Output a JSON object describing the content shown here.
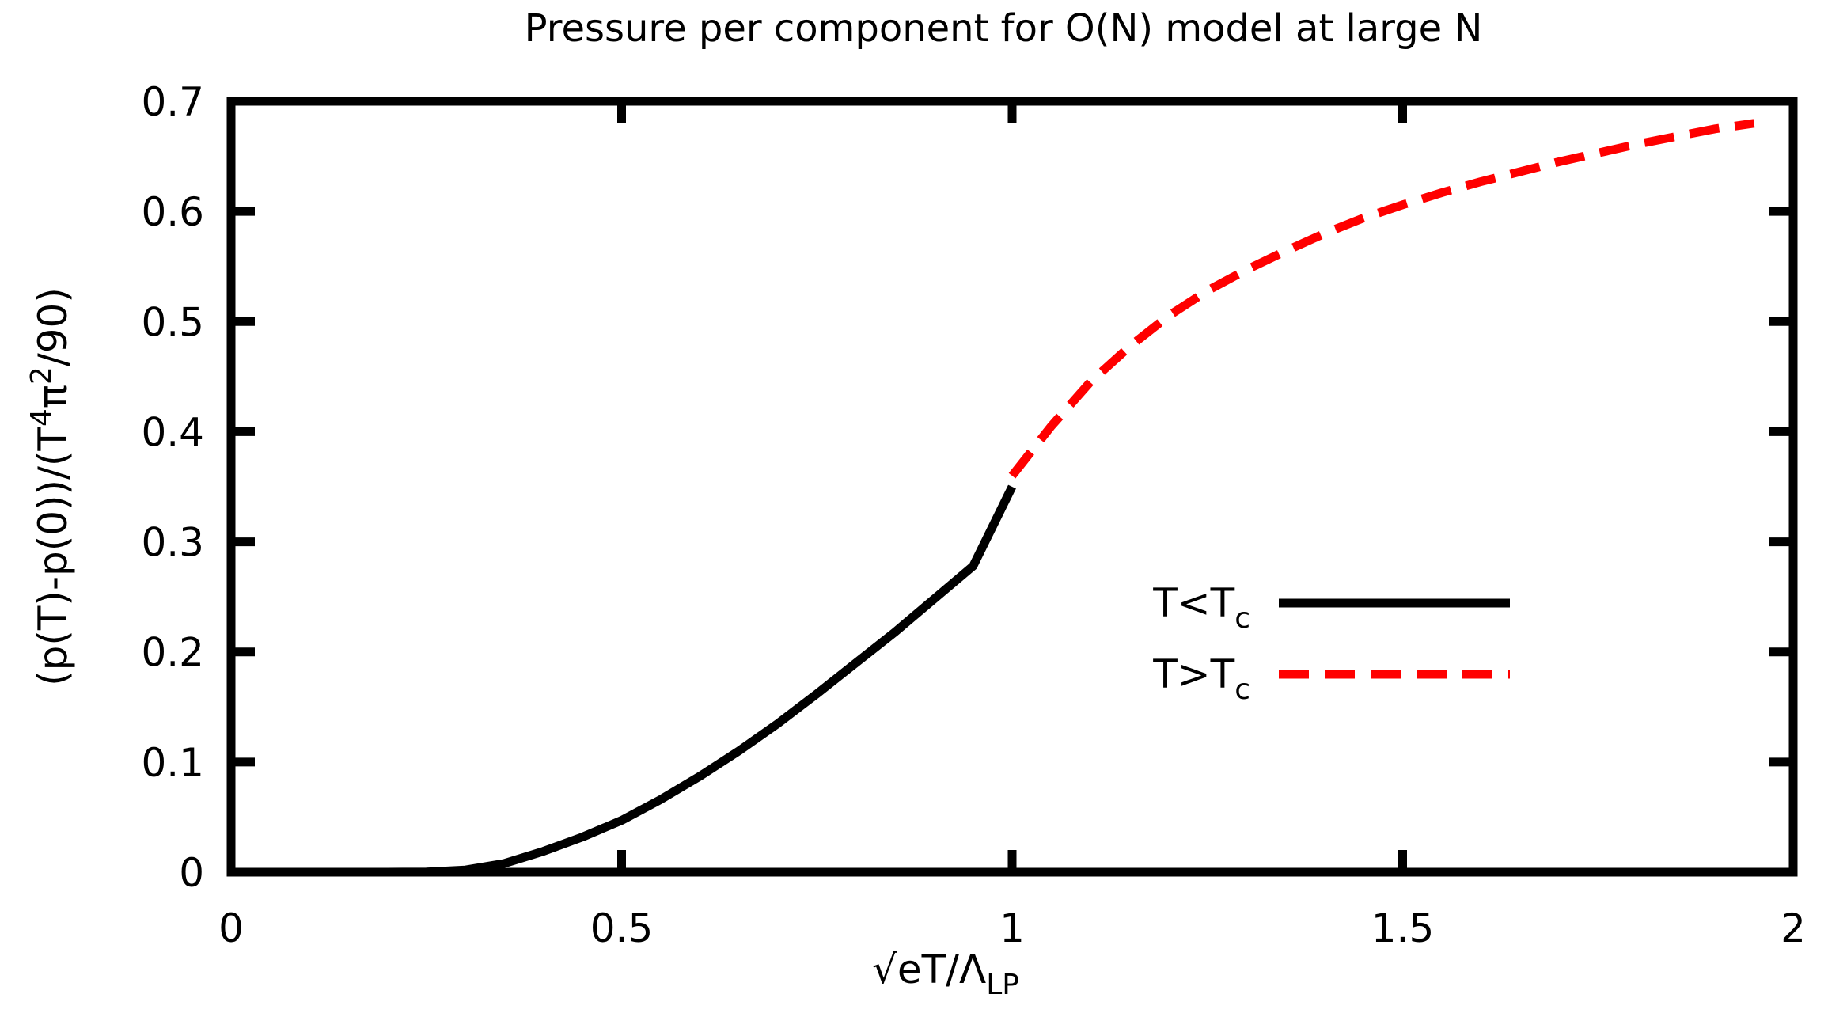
{
  "chart_data": {
    "type": "line",
    "title": "Pressure per component for O(N) model at large N",
    "xlabel": {
      "main": "√eT/Λ",
      "sub": "LP"
    },
    "ylabel": {
      "p1": "(p(T)-p(0))/(T",
      "sup1": "4",
      "p2": "π",
      "sup2": "2",
      "p3": "/90)"
    },
    "xlim": [
      0,
      2
    ],
    "ylim": [
      0,
      0.7
    ],
    "xticks": [
      {
        "value": 0,
        "label": "0"
      },
      {
        "value": 0.5,
        "label": "0.5"
      },
      {
        "value": 1,
        "label": "1"
      },
      {
        "value": 1.5,
        "label": "1.5"
      },
      {
        "value": 2,
        "label": "2"
      }
    ],
    "yticks": [
      {
        "value": 0,
        "label": "0"
      },
      {
        "value": 0.1,
        "label": "0.1"
      },
      {
        "value": 0.2,
        "label": "0.2"
      },
      {
        "value": 0.3,
        "label": "0.3"
      },
      {
        "value": 0.4,
        "label": "0.4"
      },
      {
        "value": 0.5,
        "label": "0.5"
      },
      {
        "value": 0.6,
        "label": "0.6"
      },
      {
        "value": 0.7,
        "label": "0.7"
      }
    ],
    "grid": false,
    "legend_position": "center-right",
    "series": [
      {
        "name": "T<Tc",
        "label_main": "T<T",
        "label_sub": "c",
        "color": "#000000",
        "style": "solid",
        "x": [
          0.0,
          0.1,
          0.2,
          0.25,
          0.3,
          0.35,
          0.4,
          0.45,
          0.5,
          0.55,
          0.6,
          0.65,
          0.7,
          0.75,
          0.8,
          0.85,
          0.9,
          0.95,
          1.0
        ],
        "y": [
          0.0,
          0.0,
          0.0,
          0.0002,
          0.002,
          0.008,
          0.019,
          0.032,
          0.047,
          0.066,
          0.087,
          0.11,
          0.135,
          0.162,
          0.19,
          0.218,
          0.248,
          0.278,
          0.35
        ]
      },
      {
        "name": "T>Tc",
        "label_main": "T>T",
        "label_sub": "c",
        "color": "#ff0000",
        "style": "dashed",
        "x": [
          1.0,
          1.05,
          1.1,
          1.15,
          1.2,
          1.25,
          1.3,
          1.35,
          1.4,
          1.45,
          1.5,
          1.55,
          1.6,
          1.65,
          1.7,
          1.75,
          1.8,
          1.85,
          1.9,
          1.95
        ],
        "y": [
          0.36,
          0.405,
          0.445,
          0.477,
          0.505,
          0.528,
          0.547,
          0.564,
          0.58,
          0.594,
          0.606,
          0.617,
          0.627,
          0.636,
          0.645,
          0.653,
          0.661,
          0.668,
          0.675,
          0.68
        ]
      }
    ]
  }
}
